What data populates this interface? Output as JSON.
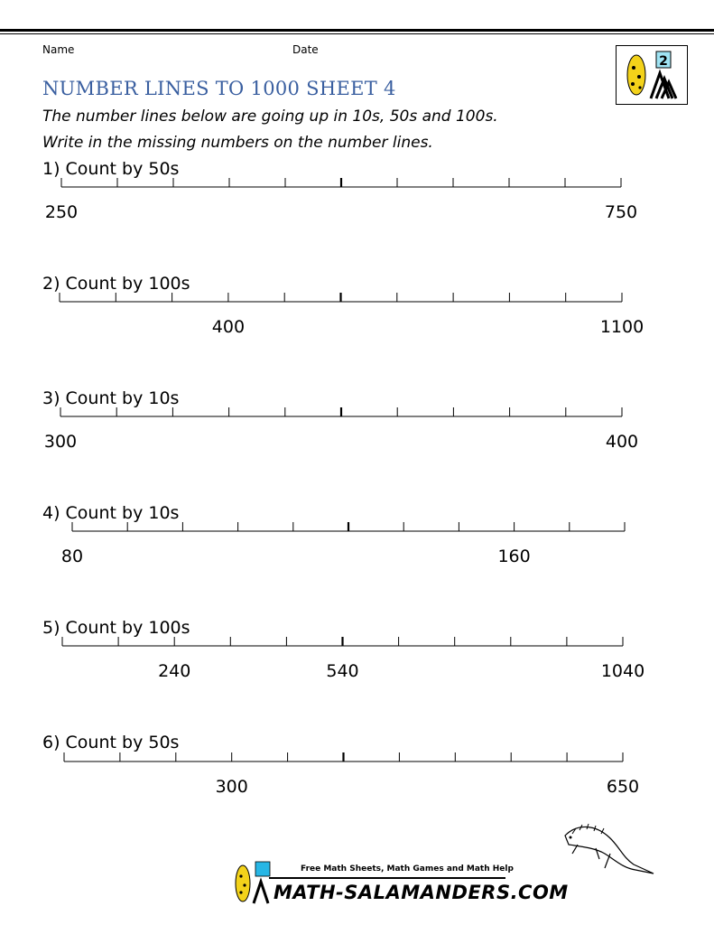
{
  "header": {
    "name_label": "Name",
    "date_label": "Date"
  },
  "title": "NUMBER LINES TO 1000 SHEET 4",
  "instructions": [
    "The number lines below are going up in 10s, 50s and 100s.",
    "Write in the missing numbers on the number lines."
  ],
  "logo": {
    "badge": "2"
  },
  "questions": [
    {
      "label": "1) Count by 50s",
      "labels": [
        {
          "tick": 0,
          "text": "250"
        },
        {
          "tick": 10,
          "text": "750"
        }
      ]
    },
    {
      "label": "2) Count by 100s",
      "labels": [
        {
          "tick": 3,
          "text": "400"
        },
        {
          "tick": 10,
          "text": "1100"
        }
      ]
    },
    {
      "label": "3) Count by 10s",
      "labels": [
        {
          "tick": 0,
          "text": "300"
        },
        {
          "tick": 10,
          "text": "400"
        }
      ]
    },
    {
      "label": "4) Count by 10s",
      "labels": [
        {
          "tick": 0,
          "text": "80"
        },
        {
          "tick": 8,
          "text": "160"
        }
      ]
    },
    {
      "label": "5) Count by 100s",
      "labels": [
        {
          "tick": 2,
          "text": "240"
        },
        {
          "tick": 5,
          "text": "540"
        },
        {
          "tick": 10,
          "text": "1040"
        }
      ]
    },
    {
      "label": "6) Count by 50s",
      "labels": [
        {
          "tick": 3,
          "text": "300"
        },
        {
          "tick": 10,
          "text": "650"
        }
      ]
    }
  ],
  "footer": {
    "tagline": "Free Math Sheets, Math Games and Math Help",
    "brand": "MATH-SALAMANDERS.COM"
  }
}
